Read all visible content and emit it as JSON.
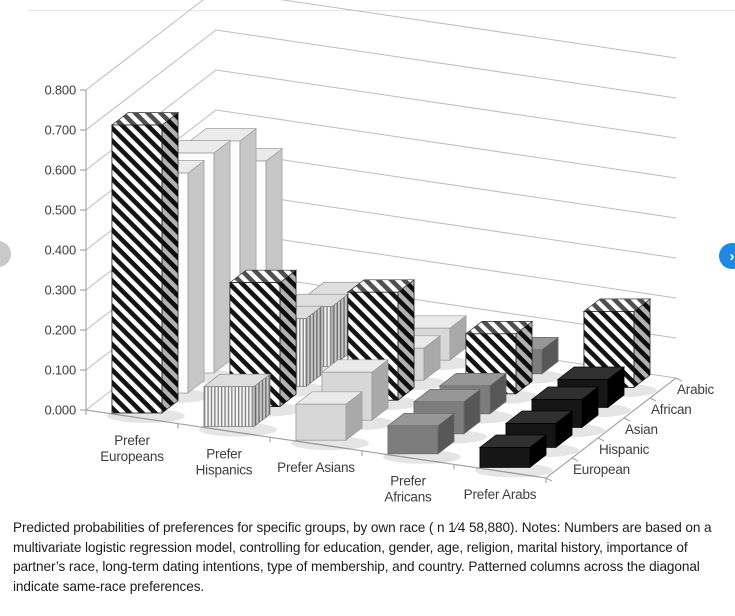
{
  "page": {
    "caption": "Predicted probabilities of preferences for specific groups, by own race ( n 1⁄4 58,880). Notes: Numbers are based on a multivariate logistic regression model, controlling for education, gender, age, religion, marital history, importance of partner’s race, long-term dating intentions, type of membership, and country. Patterned columns across the diagonal indicate same-race preferences."
  },
  "carousel": {
    "prev_label": "‹",
    "next_label": "›",
    "prev_color": "#c9c9c9",
    "next_color": "#1e88e5"
  },
  "chart_data": {
    "type": "bar",
    "subtype": "3d-column",
    "title": "",
    "xlabel": "",
    "ylabel": "",
    "ylim": [
      0,
      0.8
    ],
    "grid": true,
    "legend_position": "right-depth-axis",
    "value_axis": {
      "min": 0,
      "max": 0.8,
      "step": 0.1,
      "tick_labels": [
        "0.000",
        "0.100",
        "0.200",
        "0.300",
        "0.400",
        "0.500",
        "0.600",
        "0.700",
        "0.800"
      ]
    },
    "categories": [
      "Prefer Europeans",
      "Prefer Hispanics",
      "Prefer Asians",
      "Prefer Africans",
      "Prefer Arabs"
    ],
    "category_label_lines": [
      [
        "Prefer",
        "Europeans"
      ],
      [
        "Prefer",
        "Hispanics"
      ],
      [
        "Prefer Asians"
      ],
      [
        "Prefer",
        "Africans"
      ],
      [
        "Prefer Arabs"
      ]
    ],
    "series": [
      {
        "name": "European",
        "values": [
          0.72,
          0.1,
          0.09,
          0.07,
          0.05
        ]
      },
      {
        "name": "Hispanic",
        "values": [
          0.55,
          0.31,
          0.12,
          0.08,
          0.06
        ]
      },
      {
        "name": "Asian",
        "values": [
          0.55,
          0.17,
          0.27,
          0.07,
          0.07
        ]
      },
      {
        "name": "African",
        "values": [
          0.53,
          0.15,
          0.08,
          0.15,
          0.07
        ]
      },
      {
        "name": "Arabic",
        "values": [
          0.43,
          0.13,
          0.08,
          0.06,
          0.19
        ]
      }
    ],
    "same_race_diagonal_patterned": true,
    "category_styles": [
      {
        "kind": "solid",
        "front": "#fdfdfd",
        "side": "#c7c7c7",
        "top": "#ebebeb",
        "stroke": "#9c9c9c"
      },
      {
        "kind": "vstripe",
        "front": "#f6f6f6",
        "side": "#cfcfcf",
        "top": "#dedede",
        "stroke": "#8a8a8a",
        "line": "#7d7d7d"
      },
      {
        "kind": "solid",
        "front": "#d7d7d7",
        "side": "#a9a9a9",
        "top": "#eaeaea",
        "stroke": "#9c9c9c"
      },
      {
        "kind": "solid",
        "front": "#7d7d7d",
        "side": "#575757",
        "top": "#979797",
        "stroke": "#6b6b6b"
      },
      {
        "kind": "solid",
        "front": "#161616",
        "side": "#000000",
        "top": "#303030",
        "stroke": "#000000"
      }
    ],
    "diagonal_pattern": {
      "stripe": "#141414",
      "bg": "#ffffff",
      "stroke": "#1a1a1a"
    },
    "axis_color": "#a6a6a6",
    "grid_color": "#bdbdbd",
    "label_color": "#3d3d3d"
  }
}
